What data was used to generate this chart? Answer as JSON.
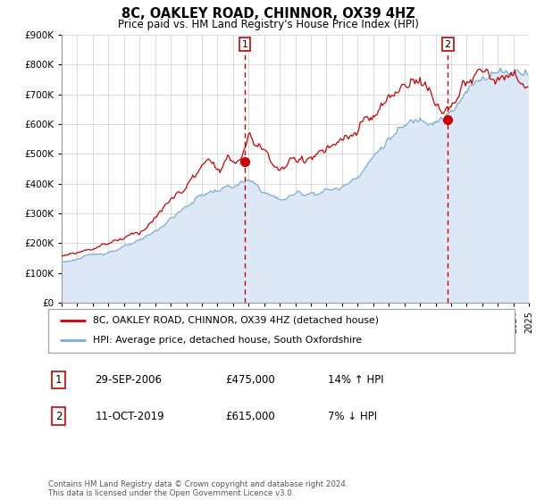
{
  "title": "8C, OAKLEY ROAD, CHINNOR, OX39 4HZ",
  "subtitle": "Price paid vs. HM Land Registry's House Price Index (HPI)",
  "legend_line1": "8C, OAKLEY ROAD, CHINNOR, OX39 4HZ (detached house)",
  "legend_line2": "HPI: Average price, detached house, South Oxfordshire",
  "sale1_date": "29-SEP-2006",
  "sale1_price": 475000,
  "sale1_hpi": "14% ↑ HPI",
  "sale1_year": 2006.75,
  "sale2_date": "11-OCT-2019",
  "sale2_price": 615000,
  "sale2_hpi": "7% ↓ HPI",
  "sale2_year": 2019.78,
  "xmin": 1995,
  "xmax": 2025,
  "ymin": 0,
  "ymax": 900000,
  "red_color": "#cc0000",
  "blue_color": "#7aadd4",
  "blue_fill": "#dce8f5",
  "grid_color": "#cccccc",
  "footer": "Contains HM Land Registry data © Crown copyright and database right 2024.\nThis data is licensed under the Open Government Licence v3.0."
}
